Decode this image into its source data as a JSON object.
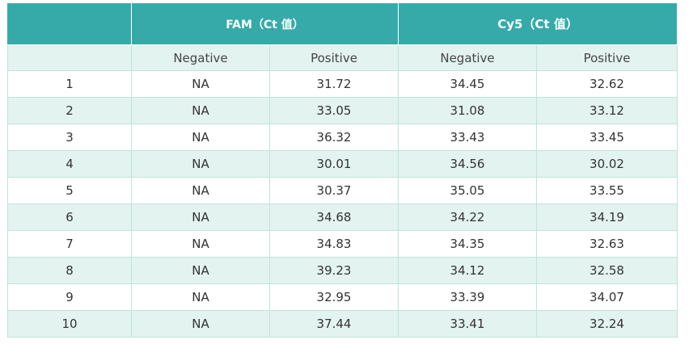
{
  "header": {
    "group_fam": "FAM（Ct 值）",
    "group_cy5": "Cy5（Ct 值）",
    "sub_fam_negative": "Negative",
    "sub_fam_positive": "Positive",
    "sub_cy5_negative": "Negative",
    "sub_cy5_positive": "Positive"
  },
  "rows": [
    {
      "index": "1",
      "fam_negative": "NA",
      "fam_positive": "31.72",
      "cy5_negative": "34.45",
      "cy5_positive": "32.62"
    },
    {
      "index": "2",
      "fam_negative": "NA",
      "fam_positive": "33.05",
      "cy5_negative": "31.08",
      "cy5_positive": "33.12"
    },
    {
      "index": "3",
      "fam_negative": "NA",
      "fam_positive": "36.32",
      "cy5_negative": "33.43",
      "cy5_positive": "33.45"
    },
    {
      "index": "4",
      "fam_negative": "NA",
      "fam_positive": "30.01",
      "cy5_negative": "34.56",
      "cy5_positive": "30.02"
    },
    {
      "index": "5",
      "fam_negative": "NA",
      "fam_positive": "30.37",
      "cy5_negative": "35.05",
      "cy5_positive": "33.55"
    },
    {
      "index": "6",
      "fam_negative": "NA",
      "fam_positive": "34.68",
      "cy5_negative": "34.22",
      "cy5_positive": "34.19"
    },
    {
      "index": "7",
      "fam_negative": "NA",
      "fam_positive": "34.83",
      "cy5_negative": "34.35",
      "cy5_positive": "32.63"
    },
    {
      "index": "8",
      "fam_negative": "NA",
      "fam_positive": "39.23",
      "cy5_negative": "34.12",
      "cy5_positive": "32.58"
    },
    {
      "index": "9",
      "fam_negative": "NA",
      "fam_positive": "32.95",
      "cy5_negative": "33.39",
      "cy5_positive": "34.07"
    },
    {
      "index": "10",
      "fam_negative": "NA",
      "fam_positive": "37.44",
      "cy5_negative": "33.41",
      "cy5_positive": "32.24"
    }
  ],
  "colors": {
    "header_teal": "#35aaa9",
    "stripe_light": "#e3f3ef",
    "border": "#bfe3dc"
  }
}
